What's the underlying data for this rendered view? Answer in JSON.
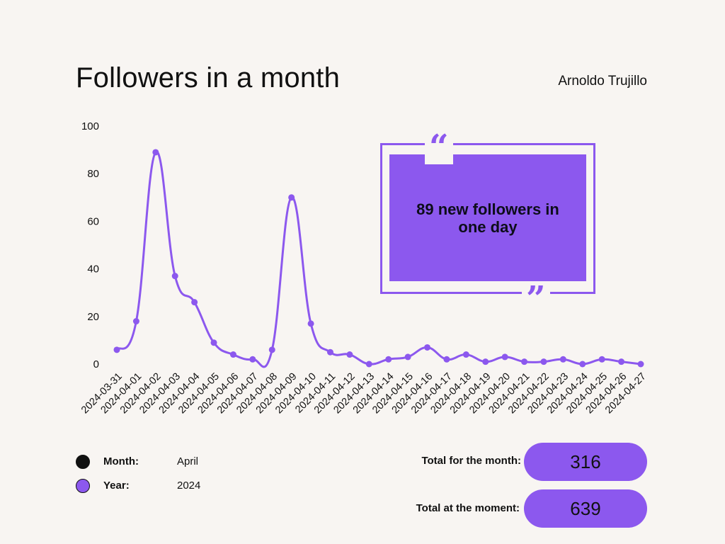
{
  "header": {
    "title": "Followers in a month",
    "author": "Arnoldo Trujillo"
  },
  "colors": {
    "accent": "#8c58ee",
    "background": "#f8f5f2",
    "month_dot": "#111111"
  },
  "quote": {
    "text": "89 new followers in one day",
    "open_mark": "“",
    "close_mark": "”"
  },
  "legend": {
    "month_label": "Month:",
    "month_value": "April",
    "year_label": "Year:",
    "year_value": "2024"
  },
  "totals": {
    "month_label": "Total for the month:",
    "month_value": "316",
    "moment_label": "Total at the moment:",
    "moment_value": "639"
  },
  "chart_data": {
    "type": "line",
    "title": "",
    "xlabel": "",
    "ylabel": "",
    "ylim": [
      0,
      100
    ],
    "yticks": [
      0,
      20,
      40,
      60,
      80,
      100
    ],
    "grid": false,
    "curve": "smooth",
    "x": [
      "2024-03-31",
      "2024-04-01",
      "2024-04-02",
      "2024-04-03",
      "2024-04-04",
      "2024-04-05",
      "2024-04-06",
      "2024-04-07",
      "2024-04-08",
      "2024-04-09",
      "2024-04-10",
      "2024-04-11",
      "2024-04-12",
      "2024-04-13",
      "2024-04-14",
      "2024-04-15",
      "2024-04-16",
      "2024-04-17",
      "2024-04-18",
      "2024-04-19",
      "2024-04-20",
      "2024-04-21",
      "2024-04-22",
      "2024-04-23",
      "2024-04-24",
      "2024-04-25",
      "2024-04-26",
      "2024-04-27"
    ],
    "series": [
      {
        "color": "#8c58ee",
        "values": [
          6,
          18,
          89,
          37,
          26,
          9,
          4,
          2,
          6,
          70,
          17,
          5,
          4,
          0,
          2,
          3,
          7,
          2,
          4,
          1,
          3,
          1,
          1,
          2,
          0,
          2,
          1,
          0
        ]
      }
    ]
  }
}
